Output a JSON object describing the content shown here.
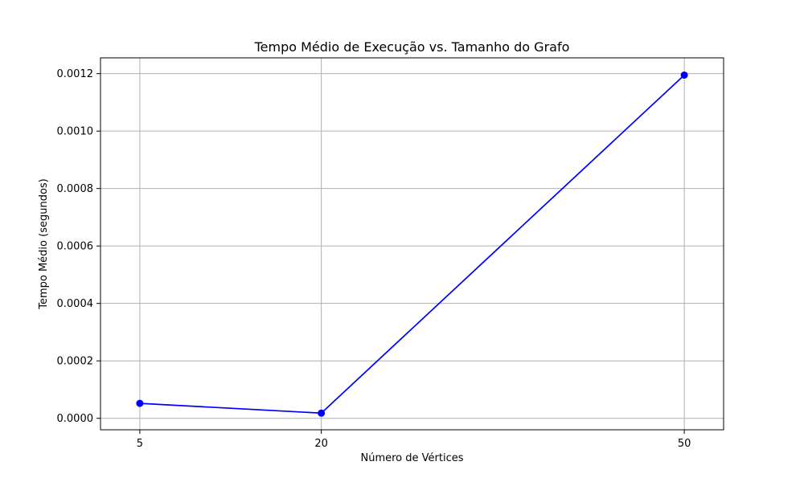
{
  "chart_data": {
    "type": "line",
    "title": "Tempo Médio de Execução vs. Tamanho do Grafo",
    "xlabel": "Número de Vértices",
    "ylabel": "Tempo Médio (segundos)",
    "x": [
      5,
      20,
      50
    ],
    "series": [
      {
        "values": [
          5.2e-05,
          1.8e-05,
          0.001195
        ],
        "color": "#0000ff",
        "marker": "circle"
      }
    ],
    "xlim": [
      1.75,
      53.25
    ],
    "ylim": [
      -4e-05,
      0.001255
    ],
    "x_ticks": [
      {
        "value": 5,
        "label": "5"
      },
      {
        "value": 20,
        "label": "20"
      },
      {
        "value": 50,
        "label": "50"
      }
    ],
    "y_ticks": [
      {
        "value": 0.0,
        "label": "0.0000"
      },
      {
        "value": 0.0002,
        "label": "0.0002"
      },
      {
        "value": 0.0004,
        "label": "0.0004"
      },
      {
        "value": 0.0006,
        "label": "0.0006"
      },
      {
        "value": 0.0008,
        "label": "0.0008"
      },
      {
        "value": 0.001,
        "label": "0.0010"
      },
      {
        "value": 0.0012,
        "label": "0.0012"
      }
    ],
    "grid": true
  }
}
